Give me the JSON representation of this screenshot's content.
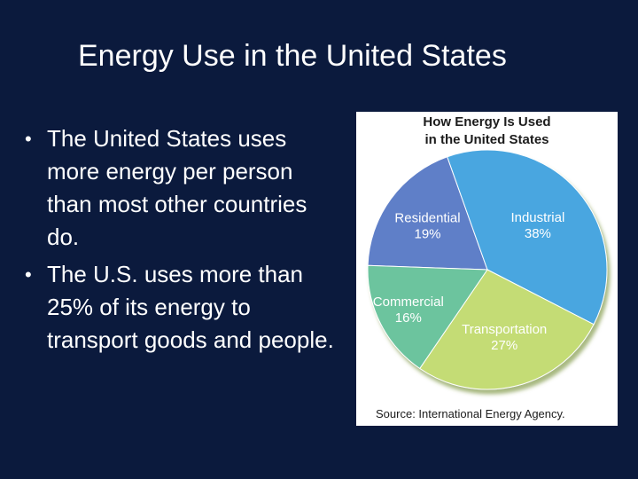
{
  "slide": {
    "title": "Energy Use in the United States",
    "bullets": [
      "The United States uses more energy per person than most other countries do.",
      "The U.S. uses more than 25% of its energy to transport goods and people."
    ]
  },
  "chart_data": {
    "type": "pie",
    "title_lines": [
      "How Energy Is Used",
      "in the United States"
    ],
    "slices": [
      {
        "label": "Residential",
        "value": 19,
        "value_label": "19%",
        "color": "#5f7fc8"
      },
      {
        "label": "Industrial",
        "value": 38,
        "value_label": "38%",
        "color": "#4aa6e0"
      },
      {
        "label": "Transportation",
        "value": 27,
        "value_label": "27%",
        "color": "#c4dc74"
      },
      {
        "label": "Commercial",
        "value": 16,
        "value_label": "16%",
        "color": "#6cc49e"
      }
    ],
    "label_color": "#ffffff",
    "source": "Source: International Energy Agency."
  }
}
